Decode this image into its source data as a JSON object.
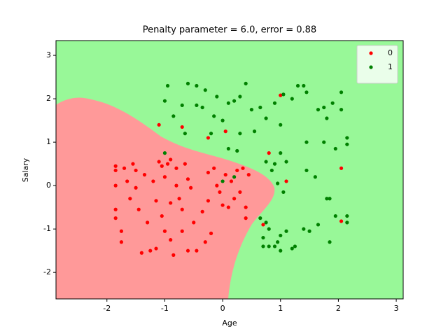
{
  "chart_data": {
    "type": "scatter",
    "title": "Penalty parameter = 6.0, error = 0.88",
    "x_label": "Age",
    "y_label": "Salary",
    "xlim": [
      -2.88,
      3.12
    ],
    "ylim": [
      -2.61,
      3.34
    ],
    "xticks": [
      -2,
      -1,
      0,
      1,
      2,
      3
    ],
    "yticks": [
      -2,
      -1,
      0,
      1,
      2,
      3
    ],
    "legend": "upper right",
    "series": [
      {
        "name": "0",
        "color": "#ff0000",
        "x": [
          -1.85,
          -1.85,
          -1.85,
          -1.85,
          -1.85,
          -1.75,
          -1.75,
          -1.7,
          -1.65,
          -1.6,
          -1.55,
          -1.5,
          -1.5,
          -1.45,
          -1.4,
          -1.35,
          -1.3,
          -1.25,
          -1.2,
          -1.15,
          -1.15,
          -1.1,
          -1.05,
          -1.05,
          -1.0,
          -1.0,
          -0.95,
          -0.9,
          -0.9,
          -0.9,
          -0.85,
          -0.8,
          -0.8,
          -0.75,
          -0.7,
          -0.7,
          -0.65,
          -0.6,
          -0.6,
          -0.55,
          -0.5,
          -0.45,
          -0.35,
          -0.3,
          -0.25,
          -0.25,
          -0.2,
          -0.15,
          -0.1,
          -0.05,
          0.0,
          0.05,
          0.1,
          0.15,
          0.2,
          0.25,
          0.3,
          0.35,
          0.4,
          0.45,
          0.4,
          -1.1,
          -0.7,
          -0.25,
          0.05,
          1.0,
          0.8,
          1.1,
          2.05,
          2.05,
          0.7
        ],
        "y": [
          0.45,
          0.35,
          0.0,
          -0.55,
          -0.75,
          -1.05,
          -1.3,
          0.4,
          0.1,
          -0.3,
          0.5,
          0.35,
          -0.05,
          -0.55,
          -1.55,
          0.25,
          -0.85,
          -1.5,
          0.1,
          -0.35,
          -1.45,
          0.55,
          0.45,
          -0.7,
          0.2,
          -1.05,
          0.5,
          0.6,
          -0.4,
          -1.25,
          -1.6,
          0.4,
          0.0,
          -0.3,
          -0.55,
          -1.05,
          0.5,
          0.15,
          -1.5,
          -0.05,
          -0.85,
          -1.5,
          -0.6,
          -1.3,
          0.3,
          -0.35,
          -1.1,
          0.4,
          0.0,
          -0.15,
          -0.45,
          0.25,
          -0.5,
          0.1,
          -0.3,
          0.35,
          -0.15,
          0.4,
          -0.5,
          0.25,
          -0.75,
          1.4,
          1.35,
          1.1,
          1.25,
          2.08,
          0.75,
          0.1,
          0.4,
          -0.82,
          -0.9
        ]
      },
      {
        "name": "1",
        "color": "#008000",
        "x": [
          -0.95,
          -0.6,
          -0.45,
          -0.3,
          -0.1,
          -0.15,
          -0.45,
          -0.7,
          -0.85,
          -1.0,
          -0.65,
          -0.35,
          -0.2,
          0.0,
          0.2,
          0.1,
          0.3,
          0.4,
          0.5,
          0.55,
          0.65,
          0.75,
          0.3,
          0.1,
          0.25,
          0.9,
          1.0,
          1.05,
          1.2,
          1.3,
          1.4,
          1.45,
          1.65,
          1.75,
          1.8,
          1.9,
          2.05,
          2.05,
          2.15,
          2.15,
          1.95,
          1.75,
          1.45,
          1.0,
          0.75,
          0.85,
          0.9,
          1.1,
          0.95,
          1.05,
          1.45,
          1.6,
          1.8,
          1.85,
          1.95,
          2.15,
          2.15,
          1.65,
          1.85,
          1.5,
          1.4,
          1.25,
          1.1,
          1.0,
          0.95,
          0.8,
          0.7,
          0.7,
          0.8,
          0.9,
          1.0,
          1.2,
          0.65,
          0.75,
          0.2,
          0.0,
          -1.0
        ],
        "y": [
          2.3,
          2.35,
          2.3,
          2.2,
          2.05,
          1.6,
          1.85,
          1.85,
          1.6,
          1.95,
          1.2,
          1.8,
          1.2,
          1.5,
          1.95,
          1.9,
          2.05,
          2.35,
          1.75,
          1.25,
          1.8,
          1.55,
          1.2,
          0.85,
          0.8,
          1.9,
          1.4,
          2.1,
          2.0,
          2.3,
          2.3,
          2.15,
          1.75,
          1.8,
          1.55,
          1.9,
          1.75,
          2.15,
          1.1,
          0.95,
          0.85,
          1.0,
          1.0,
          0.75,
          0.55,
          0.35,
          0.5,
          0.55,
          0.05,
          -0.15,
          0.35,
          0.2,
          -0.3,
          -0.3,
          -0.7,
          -0.7,
          -0.85,
          -0.9,
          -1.3,
          -1.05,
          -1.0,
          -1.4,
          -1.05,
          -1.15,
          -1.3,
          -1.0,
          -1.2,
          -1.4,
          -1.4,
          -1.4,
          -1.5,
          -1.45,
          -0.75,
          -0.85,
          0.2,
          0.1,
          0.75
        ]
      }
    ]
  }
}
